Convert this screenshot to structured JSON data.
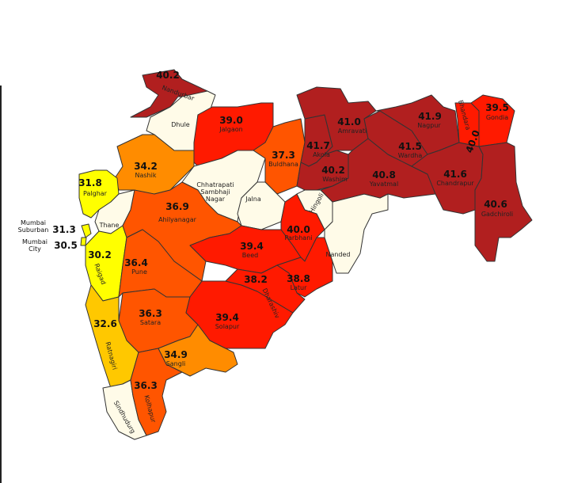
{
  "map": {
    "region": "Maharashtra",
    "legend_colors": {
      "above_40": "#b11f1f",
      "38_to_40": "#ff1a00",
      "36_to_38": "#ff5500",
      "34_to_36": "#ff8c00",
      "32_to_34": "#ffc800",
      "below_32": "#ffff00",
      "no_data": "#fffbe8"
    },
    "districts": [
      {
        "name": "Nandurbar",
        "value": "40.2",
        "color": "#b11f1f"
      },
      {
        "name": "Dhule",
        "value": null,
        "color": "#fffbe8"
      },
      {
        "name": "Jalgaon",
        "value": "39.0",
        "color": "#ff1a00"
      },
      {
        "name": "Buldhana",
        "value": "37.3",
        "color": "#ff5500"
      },
      {
        "name": "Chhatrapati Sambhaji Nagar",
        "value": null,
        "color": "#fffbe8"
      },
      {
        "name": "Jalna",
        "value": null,
        "color": "#fffbe8"
      },
      {
        "name": "Nashik",
        "value": "34.2",
        "color": "#ff8c00"
      },
      {
        "name": "Palghar",
        "value": "31.8",
        "color": "#ffff00"
      },
      {
        "name": "Thane",
        "value": null,
        "color": "#fffbe8"
      },
      {
        "name": "Mumbai Suburban",
        "value": "31.3",
        "color": "#ffff00"
      },
      {
        "name": "Mumbai City",
        "value": "30.5",
        "color": "#ffff00"
      },
      {
        "name": "Raigad",
        "value": "30.2",
        "color": "#ffff00"
      },
      {
        "name": "Ahilyanagar",
        "value": "36.9",
        "color": "#ff5500"
      },
      {
        "name": "Pune",
        "value": "36.4",
        "color": "#ff5500"
      },
      {
        "name": "Satara",
        "value": "36.3",
        "color": "#ff5500"
      },
      {
        "name": "Ratnagiri",
        "value": "32.6",
        "color": "#ffc800"
      },
      {
        "name": "Sindhudurg",
        "value": null,
        "color": "#fffbe8"
      },
      {
        "name": "Kolhapur",
        "value": "36.3",
        "color": "#ff5500"
      },
      {
        "name": "Sangli",
        "value": "34.9",
        "color": "#ff8c00"
      },
      {
        "name": "Solapur",
        "value": "39.4",
        "color": "#ff1a00"
      },
      {
        "name": "Beed",
        "value": "39.4",
        "color": "#ff1a00"
      },
      {
        "name": "Parbhani",
        "value": "40.0",
        "color": "#ff1a00"
      },
      {
        "name": "Hingoli",
        "value": null,
        "color": "#fffbe8"
      },
      {
        "name": "Latur",
        "value": "38.8",
        "color": "#ff1a00"
      },
      {
        "name": "Dharashiv",
        "value": "38.2",
        "color": "#ff1a00"
      },
      {
        "name": "Nanded",
        "value": null,
        "color": "#fffbe8"
      },
      {
        "name": "Akola",
        "value": "41.7",
        "color": "#b11f1f"
      },
      {
        "name": "Washim",
        "value": "40.2",
        "color": "#b11f1f"
      },
      {
        "name": "Amravati",
        "value": "41.0",
        "color": "#b11f1f"
      },
      {
        "name": "Yavatmal",
        "value": "40.8",
        "color": "#b11f1f"
      },
      {
        "name": "Wardha",
        "value": "41.5",
        "color": "#b11f1f"
      },
      {
        "name": "Nagpur",
        "value": "41.9",
        "color": "#b11f1f"
      },
      {
        "name": "Chandrapur",
        "value": "41.6",
        "color": "#b11f1f"
      },
      {
        "name": "Bhandara",
        "value": "40.0",
        "color": "#ff1a00"
      },
      {
        "name": "Gondia",
        "value": "39.5",
        "color": "#ff1a00"
      },
      {
        "name": "Gadchiroli",
        "value": "40.6",
        "color": "#b11f1f"
      }
    ]
  }
}
